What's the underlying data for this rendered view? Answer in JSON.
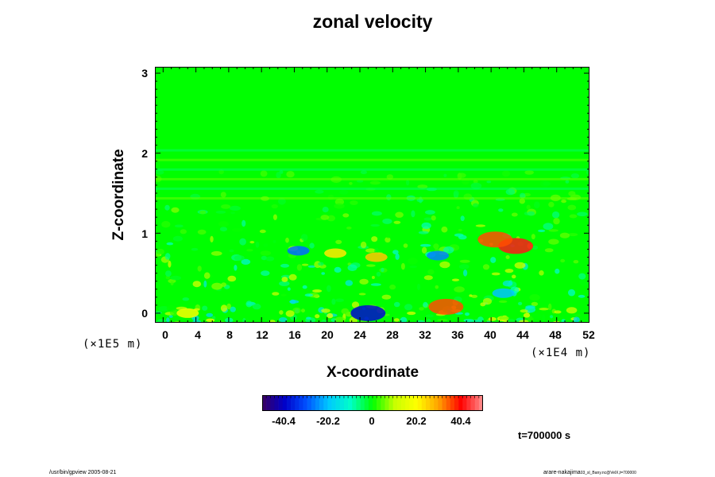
{
  "chart_data": {
    "type": "heatmap",
    "title": "zonal velocity",
    "xlabel": "X-coordinate",
    "ylabel": "Z-coordinate",
    "x_unit": "(×1E4 m)",
    "z_unit": "(×1E5 m)",
    "xlim": [
      -1,
      52
    ],
    "ylim": [
      -0.12,
      3.08
    ],
    "xticks": [
      "0",
      "4",
      "8",
      "12",
      "16",
      "20",
      "24",
      "28",
      "32",
      "36",
      "40",
      "44",
      "48",
      "52"
    ],
    "yticks": [
      "0",
      "1",
      "2",
      "3"
    ],
    "colorbar": {
      "range": [
        -54,
        54
      ],
      "ticks": [
        "-40.4",
        "-20.2",
        "0",
        "20.2",
        "40.4"
      ],
      "colors": [
        "#3a0060",
        "#0000c8",
        "#0050ff",
        "#00c8ff",
        "#00ffc8",
        "#00ff00",
        "#c8ff00",
        "#ffff00",
        "#ffa000",
        "#ff0000",
        "#ff9090"
      ]
    },
    "background_value": 0,
    "features": [
      {
        "x": 16.5,
        "z": 0.78,
        "value": -30
      },
      {
        "x": 25,
        "z": 0.0,
        "value": -42
      },
      {
        "x": 33.5,
        "z": 0.72,
        "value": -28
      },
      {
        "x": 43,
        "z": 0.84,
        "value": 45
      },
      {
        "x": 40.5,
        "z": 0.92,
        "value": 38
      },
      {
        "x": 34.5,
        "z": 0.08,
        "value": 38
      },
      {
        "x": 26,
        "z": 0.7,
        "value": 28
      },
      {
        "x": 21,
        "z": 0.75,
        "value": 24
      },
      {
        "x": 41.5,
        "z": 0.25,
        "value": -22
      },
      {
        "x": 3,
        "z": 0.0,
        "value": 20
      }
    ]
  },
  "time_info": "t=700000 s",
  "footer_left": "/usr/bin/gpview 2005-08-21",
  "footer_right_main": "arare-nakajima",
  "footer_right_small": "03_sl_Bany.nc@VelX,t=700000"
}
